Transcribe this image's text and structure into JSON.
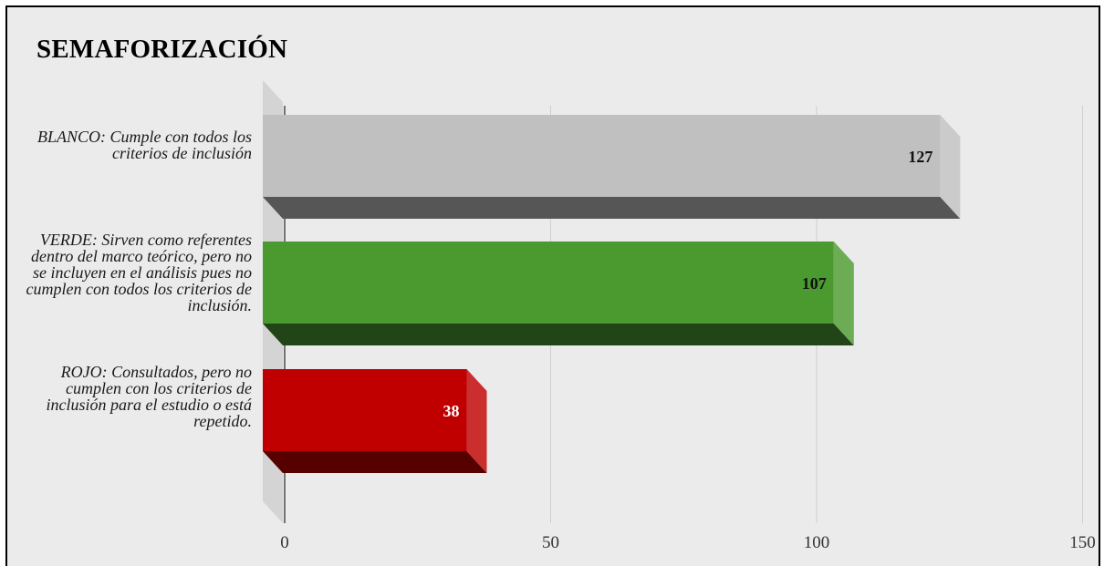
{
  "chart_data": {
    "type": "bar",
    "orientation": "horizontal",
    "title": "SEMAFORIZACIÓN",
    "categories": [
      "BLANCO: Cumple con todos los criterios de inclusión",
      "VERDE: Sirven como referentes dentro del marco teórico, pero no se incluyen en el análisis pues no cumplen con todos los criterios de inclusión.",
      "ROJO: Consultados, pero no cumplen con los criterios de inclusión para el estudio o está repetido."
    ],
    "values": [
      127,
      107,
      38
    ],
    "data_labels": [
      "127",
      "107",
      "38"
    ],
    "colors": [
      "#c0c0c0",
      "#4a9a30",
      "#c00000"
    ],
    "xlim": [
      0,
      150
    ],
    "xticks": [
      "0",
      "50",
      "100",
      "150"
    ],
    "grid": true,
    "three_d": true,
    "legend": "none"
  }
}
